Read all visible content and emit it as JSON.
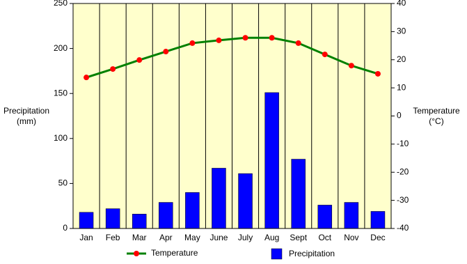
{
  "chart_data": {
    "type": "bar",
    "categories": [
      "Jan",
      "Feb",
      "Mar",
      "Apr",
      "May",
      "June",
      "July",
      "Aug",
      "Sept",
      "Oct",
      "Nov",
      "Dec"
    ],
    "series": [
      {
        "name": "Temperature",
        "type": "line",
        "axis": "y2",
        "color": "#008000",
        "marker_color": "#ff0000",
        "values": [
          13.7,
          16.7,
          19.9,
          22.9,
          25.9,
          26.9,
          27.8,
          27.8,
          25.9,
          21.9,
          17.9,
          15.0
        ]
      },
      {
        "name": "Precipitation",
        "type": "bar",
        "axis": "y",
        "color": "#0000ff",
        "values": [
          18,
          22,
          16,
          29,
          40,
          67,
          61,
          151,
          77,
          26,
          29,
          19
        ]
      }
    ],
    "ylabel": [
      "Precipitation",
      "(mm)"
    ],
    "y2label": [
      "Temperature",
      "(°C)"
    ],
    "ylim": [
      0,
      250
    ],
    "yticks": [
      0,
      50,
      100,
      150,
      200,
      250
    ],
    "y2lim": [
      -40,
      40
    ],
    "y2ticks": [
      -40,
      -30,
      -20,
      -10,
      0,
      10,
      20,
      30,
      40
    ],
    "plot_background": "#ffffcc"
  }
}
